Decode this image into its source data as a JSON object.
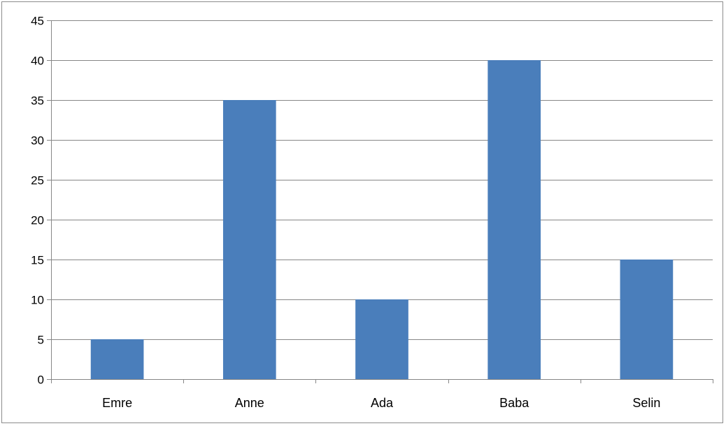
{
  "chart_data": {
    "type": "bar",
    "categories": [
      "Emre",
      "Anne",
      "Ada",
      "Baba",
      "Selin"
    ],
    "values": [
      5,
      35,
      10,
      40,
      15
    ],
    "title": "",
    "xlabel": "",
    "ylabel": "",
    "ylim": [
      0,
      45
    ],
    "yticks": [
      0,
      5,
      10,
      15,
      20,
      25,
      30,
      35,
      40,
      45
    ],
    "grid": true,
    "legend": "none",
    "bar_color": "#4a7ebb"
  }
}
